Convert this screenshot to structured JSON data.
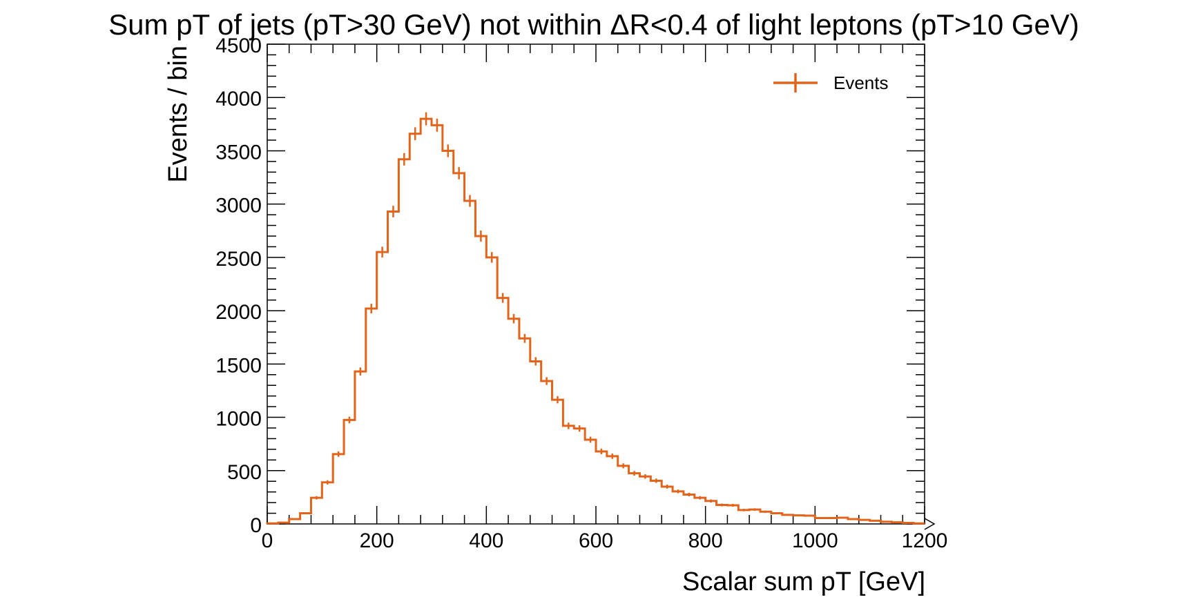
{
  "colors": {
    "series": "#e1641a",
    "axis": "#000000"
  },
  "chart_data": {
    "type": "histogram",
    "title": "Sum pT of jets (pT>30 GeV) not within ΔR<0.4 of light leptons (pT>10 GeV)",
    "xlabel": "Scalar sum pT [GeV]",
    "ylabel": "Events / bin",
    "xlim": [
      0,
      1200
    ],
    "ylim": [
      0,
      4500
    ],
    "bin_width": 20,
    "x_ticks": [
      "0",
      "200",
      "400",
      "600",
      "800",
      "1000",
      "1200"
    ],
    "y_ticks": [
      "0",
      "500",
      "1000",
      "1500",
      "2000",
      "2500",
      "3000",
      "3500",
      "4000",
      "4500"
    ],
    "legend_position": "top-right",
    "grid": false,
    "series": [
      {
        "name": "Events",
        "bin_edges_start": 0,
        "values": [
          5,
          12,
          45,
          100,
          245,
          390,
          655,
          975,
          1430,
          2020,
          2550,
          2930,
          3420,
          3660,
          3800,
          3740,
          3500,
          3290,
          3030,
          2700,
          2500,
          2120,
          1925,
          1740,
          1525,
          1340,
          1165,
          920,
          895,
          790,
          680,
          635,
          545,
          475,
          445,
          405,
          350,
          305,
          275,
          245,
          215,
          178,
          175,
          130,
          135,
          115,
          100,
          85,
          80,
          78,
          55,
          55,
          58,
          45,
          38,
          30,
          20,
          15,
          10,
          5
        ]
      }
    ]
  }
}
